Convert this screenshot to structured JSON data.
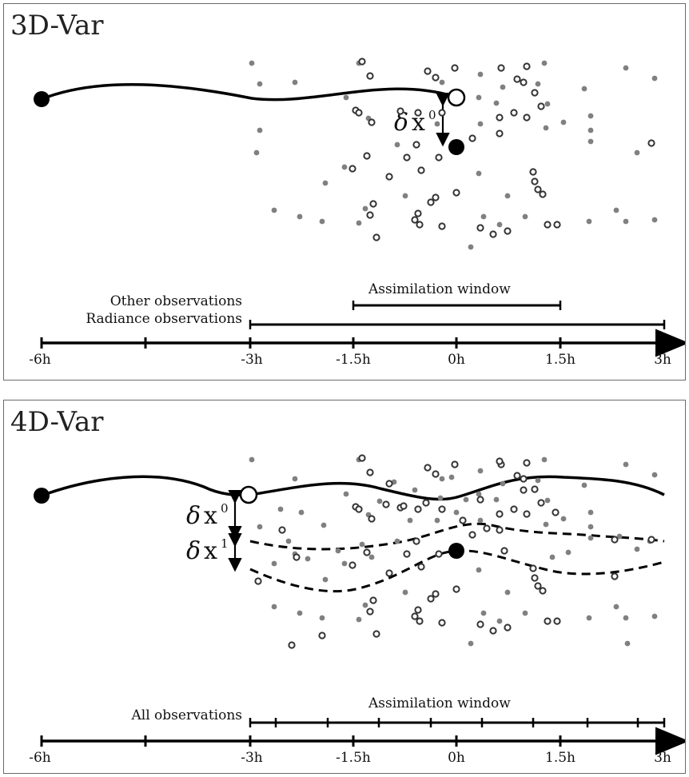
{
  "colors": {
    "line": "#000000",
    "observation_dot": "#808080",
    "observation_ring": "#333333",
    "frame": "#6b6b6b"
  },
  "panels": {
    "top": {
      "title": "3D-Var",
      "delta_symbol": "δ",
      "increment_label": "x",
      "increment_superscript": "0",
      "assimilation_window_label": "Assimilation window",
      "other_obs_label": "Other observations",
      "radiance_obs_label": "Radiance observations",
      "ticks": [
        "-6h",
        "-3h",
        "-1.5h",
        "0h",
        "1.5h",
        "3h"
      ]
    },
    "bottom": {
      "title": "4D-Var",
      "delta_symbol": "δ",
      "increment_label": "x",
      "increment0_superscript": "0",
      "increment1_superscript": "1",
      "assimilation_window_label": "Assimilation window",
      "all_obs_label": "All observations",
      "ticks": [
        "-6h",
        "-3h",
        "-1.5h",
        "0h",
        "1.5h",
        "3h"
      ]
    }
  }
}
